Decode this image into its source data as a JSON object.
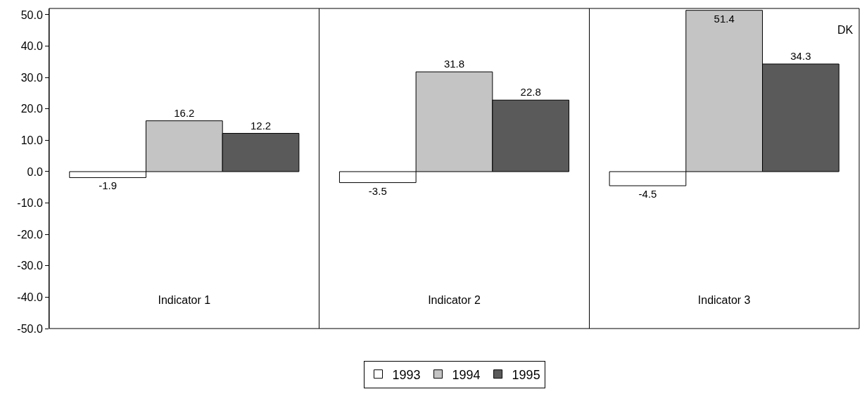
{
  "chart_data": {
    "type": "bar",
    "categories": [
      "Indicator 1",
      "Indicator 2",
      "Indicator 3"
    ],
    "series": [
      {
        "name": "1993",
        "color": "#ffffff",
        "values": [
          -1.9,
          -3.5,
          -4.5
        ]
      },
      {
        "name": "1994",
        "color": "#c4c4c4",
        "values": [
          16.2,
          31.8,
          51.4
        ]
      },
      {
        "name": "1995",
        "color": "#5a5a5a",
        "values": [
          12.2,
          22.8,
          34.3
        ]
      }
    ],
    "ylim": [
      -50,
      52
    ],
    "yticks": [
      {
        "value": -50,
        "label": "-50.0"
      },
      {
        "value": -40,
        "label": "-40.0"
      },
      {
        "value": -30,
        "label": "-30.0"
      },
      {
        "value": -20,
        "label": "-20.0"
      },
      {
        "value": -10,
        "label": "-10.0"
      },
      {
        "value": 0,
        "label": "0.0"
      },
      {
        "value": 10,
        "label": "10.0"
      },
      {
        "value": 20,
        "label": "20.0"
      },
      {
        "value": 30,
        "label": "30.0"
      },
      {
        "value": 40,
        "label": "40.0"
      },
      {
        "value": 50,
        "label": "50.0"
      }
    ],
    "annotations": [
      "DK"
    ],
    "data_labels": true,
    "grid": "x",
    "legend": "bottom"
  }
}
